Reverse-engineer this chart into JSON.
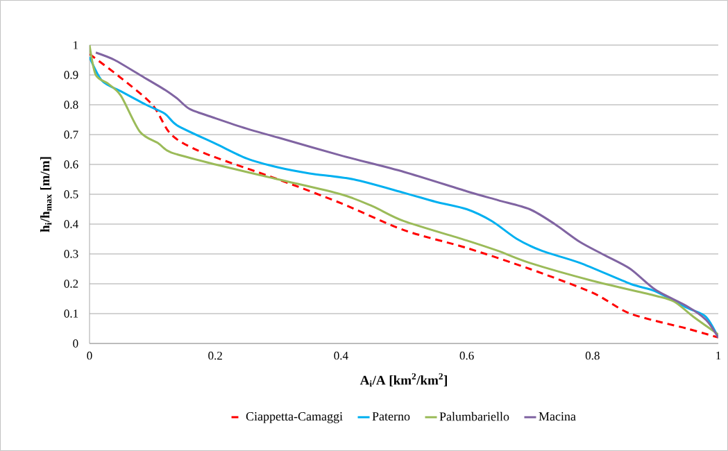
{
  "chart_data": {
    "type": "line",
    "xlabel": "**A$_{i}$/A [km$^{2}$/km$^{2}$]**",
    "ylabel": "**h$_{i}$/h$_{max}$ [m/m]**",
    "xlim": [
      0,
      1
    ],
    "ylim": [
      0,
      1
    ],
    "xticks": [
      0,
      0.2,
      0.4,
      0.6,
      0.8,
      1
    ],
    "yticks": [
      0,
      0.1,
      0.2,
      0.3,
      0.4,
      0.5,
      0.6,
      0.7,
      0.8,
      0.9,
      1
    ],
    "grid": "y",
    "legend": "bottom",
    "marker": "none",
    "series": [
      {
        "name": "Ciappetta-Camaggi",
        "color": "#ff0000",
        "line_style": "dashed",
        "x": [
          0,
          0.05,
          0.1,
          0.13,
          0.18,
          0.3,
          0.4,
          0.5,
          0.6,
          0.7,
          0.8,
          0.86,
          0.95,
          1
        ],
        "values": [
          0.97,
          0.89,
          0.8,
          0.7,
          0.64,
          0.55,
          0.47,
          0.38,
          0.32,
          0.25,
          0.17,
          0.1,
          0.05,
          0.02
        ]
      },
      {
        "name": "Paterno",
        "color": "#00b0f0",
        "line_style": "solid",
        "x": [
          0,
          0.02,
          0.05,
          0.09,
          0.12,
          0.14,
          0.2,
          0.25,
          0.3,
          0.35,
          0.42,
          0.5,
          0.55,
          0.6,
          0.64,
          0.68,
          0.72,
          0.78,
          0.86,
          0.9,
          0.95,
          0.98,
          1
        ],
        "values": [
          0.96,
          0.88,
          0.845,
          0.8,
          0.77,
          0.73,
          0.67,
          0.62,
          0.59,
          0.57,
          0.55,
          0.505,
          0.475,
          0.45,
          0.41,
          0.35,
          0.31,
          0.27,
          0.2,
          0.175,
          0.12,
          0.09,
          0.02
        ]
      },
      {
        "name": "Palumbariello",
        "color": "#9bbb59",
        "line_style": "solid",
        "x": [
          0,
          0.01,
          0.03,
          0.05,
          0.08,
          0.11,
          0.13,
          0.2,
          0.3,
          0.4,
          0.45,
          0.5,
          0.6,
          0.65,
          0.7,
          0.8,
          0.9,
          0.93,
          0.96,
          1
        ],
        "values": [
          1.0,
          0.9,
          0.87,
          0.83,
          0.71,
          0.67,
          0.64,
          0.6,
          0.55,
          0.5,
          0.46,
          0.41,
          0.345,
          0.31,
          0.27,
          0.21,
          0.16,
          0.14,
          0.09,
          0.03
        ]
      },
      {
        "name": "Macina",
        "color": "#8064a2",
        "line_style": "solid",
        "x": [
          0.01,
          0.04,
          0.08,
          0.12,
          0.14,
          0.16,
          0.2,
          0.25,
          0.3,
          0.4,
          0.5,
          0.6,
          0.65,
          0.7,
          0.74,
          0.78,
          0.82,
          0.86,
          0.9,
          0.95,
          0.98,
          1
        ],
        "values": [
          0.975,
          0.95,
          0.9,
          0.85,
          0.82,
          0.785,
          0.755,
          0.72,
          0.69,
          0.63,
          0.575,
          0.51,
          0.48,
          0.45,
          0.4,
          0.34,
          0.295,
          0.25,
          0.18,
          0.125,
          0.08,
          0.02
        ]
      }
    ]
  }
}
